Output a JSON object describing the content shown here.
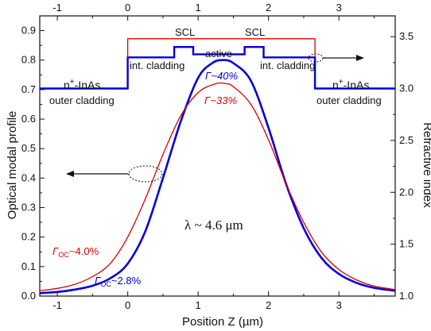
{
  "chart_data": {
    "type": "line",
    "xlabel": "Position Z (µm)",
    "ylabel_left": "Optical modal profile",
    "ylabel_right": "Refractive index",
    "xlim": [
      -1.25,
      3.8
    ],
    "ylim_left": [
      0.0,
      0.95
    ],
    "ylim_right": [
      1.0,
      3.7
    ],
    "x_ticks_bottom": [
      "-1",
      "0",
      "1",
      "2",
      "3"
    ],
    "x_ticks_top": [
      "-1",
      "0",
      "1",
      "2",
      "3"
    ],
    "y_ticks_left": [
      "0.0",
      "0.1",
      "0.2",
      "0.3",
      "0.4",
      "0.5",
      "0.6",
      "0.7",
      "0.8",
      "0.9"
    ],
    "y_ticks_right": [
      "1.0",
      "1.5",
      "2.0",
      "2.5",
      "3.0",
      "3.5"
    ],
    "series": [
      {
        "color": "#0000dd",
        "axis": "left",
        "x": [
          -1.25,
          -1.0,
          -0.75,
          -0.5,
          -0.25,
          0.0,
          0.25,
          0.5,
          0.75,
          1.0,
          1.2,
          1.35,
          1.5,
          1.75,
          2.0,
          2.25,
          2.5,
          2.75,
          3.0,
          3.25,
          3.5,
          3.8
        ],
        "y": [
          0.01,
          0.014,
          0.022,
          0.035,
          0.06,
          0.11,
          0.22,
          0.4,
          0.59,
          0.74,
          0.79,
          0.8,
          0.79,
          0.73,
          0.57,
          0.38,
          0.23,
          0.13,
          0.075,
          0.045,
          0.028,
          0.018
        ]
      },
      {
        "color": "#dd0000",
        "axis": "left",
        "x": [
          -1.25,
          -1.0,
          -0.75,
          -0.5,
          -0.25,
          0.0,
          0.25,
          0.5,
          0.75,
          1.0,
          1.25,
          1.4,
          1.5,
          1.75,
          2.0,
          2.25,
          2.5,
          2.75,
          3.0,
          3.25,
          3.5,
          3.8
        ],
        "y": [
          0.018,
          0.026,
          0.04,
          0.066,
          0.11,
          0.2,
          0.33,
          0.48,
          0.61,
          0.69,
          0.72,
          0.72,
          0.71,
          0.65,
          0.53,
          0.38,
          0.25,
          0.15,
          0.09,
          0.055,
          0.034,
          0.022
        ]
      },
      {
        "color": "#0000dd",
        "axis": "right",
        "x": [
          -1.25,
          0.0,
          0.0,
          0.66,
          0.66,
          0.93,
          0.93,
          1.66,
          1.66,
          1.93,
          1.93,
          2.66,
          2.66,
          3.8
        ],
        "y": [
          3.0,
          3.0,
          3.3,
          3.3,
          3.4,
          3.4,
          3.33,
          3.33,
          3.4,
          3.4,
          3.3,
          3.3,
          3.0,
          3.0
        ]
      },
      {
        "color": "#dd0000",
        "axis": "right",
        "x": [
          0.0,
          0.0,
          0.66,
          0.66,
          0.93,
          0.93,
          1.66,
          1.66,
          1.93,
          1.93,
          2.66,
          2.66
        ],
        "y": [
          3.3,
          3.48,
          3.48,
          3.48,
          3.48,
          3.48,
          3.48,
          3.48,
          3.48,
          3.48,
          3.48,
          3.3
        ]
      }
    ],
    "annotations": {
      "outer_left_line1": "n",
      "outer_left_sup": "+",
      "outer_left_line1b": "-InAs",
      "outer_left_line2": "outer cladding",
      "outer_right_line1": "n",
      "outer_right_sup": "+",
      "outer_right_line1b": "-InAs",
      "outer_right_line2": "outer cladding",
      "int_left": "int. cladding",
      "int_right": "int. cladding",
      "scl_left": "SCL",
      "scl_right": "SCL",
      "active": "active",
      "gamma_blue": "Γ~40%",
      "gamma_red": "Γ~33%",
      "gamma_oc_red_sym": "Γ",
      "gamma_oc_red_sub": "OC",
      "gamma_oc_red_val": "~4.0%",
      "gamma_oc_blue_sym": "Γ",
      "gamma_oc_blue_sub": "OC",
      "gamma_oc_blue_val": "~2.8%",
      "lambda": "λ ~ 4.6 μm"
    },
    "grid": false,
    "legend": "none"
  }
}
